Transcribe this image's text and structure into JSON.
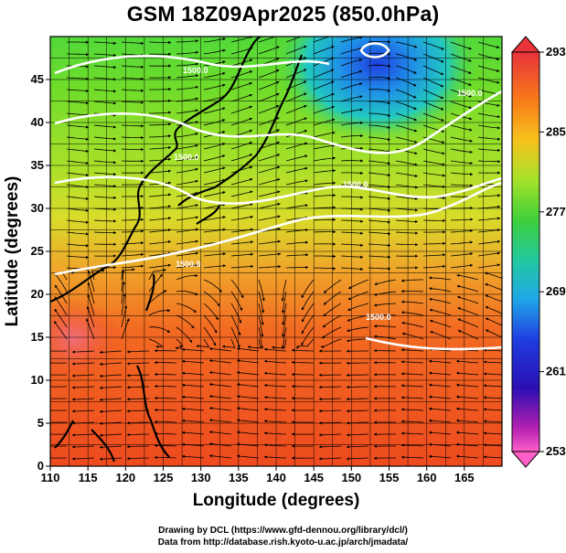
{
  "title": "GSM 18Z09Apr2025 (850.0hPa)",
  "x_axis_label": "Longitude (degrees)",
  "y_axis_label": "Latitude  (degrees)",
  "credits": {
    "line1": "Drawing by DCL (https://www.gfd-dennou.org/library/dcl/)",
    "line2": "Data from http://database.rish.kyoto-u.ac.jp/arch/jmadata/"
  },
  "map": {
    "lon_range": [
      110,
      170
    ],
    "lat_range": [
      0,
      50
    ],
    "lon_ticks": [
      "110",
      "115",
      "120",
      "125",
      "130",
      "135",
      "140",
      "145",
      "150",
      "155",
      "160",
      "165"
    ],
    "lat_ticks": [
      "0",
      "5",
      "10",
      "15",
      "20",
      "25",
      "30",
      "35",
      "40",
      "45"
    ],
    "contour_labels": [
      "1500.0",
      "1500.0",
      "1500.0",
      "1500.0",
      "1500.0",
      "1500.0"
    ]
  },
  "colorbar": {
    "tick_labels": [
      "293",
      "285",
      "277",
      "269",
      "261",
      "253"
    ],
    "colors": [
      "#e8333a",
      "#f77a1a",
      "#f7c21c",
      "#a6e22a",
      "#3fcf3a",
      "#22c9a0",
      "#1fa6e8",
      "#1f3de0",
      "#2a0fb3",
      "#b21fb0",
      "#ff5fc8"
    ]
  }
}
